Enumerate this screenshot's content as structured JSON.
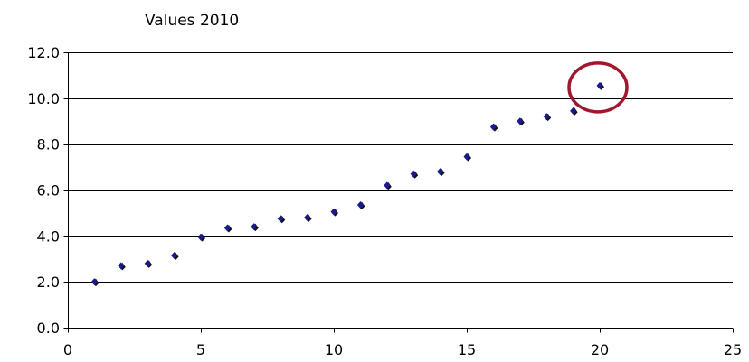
{
  "chart_data": {
    "type": "scatter",
    "title": "Values 2010",
    "xlabel": "",
    "ylabel": "",
    "xlim": [
      0,
      25
    ],
    "ylim": [
      0,
      12
    ],
    "x_ticks": [
      0,
      5,
      10,
      15,
      20,
      25
    ],
    "y_ticks": [
      0,
      2,
      4,
      6,
      8,
      10,
      12
    ],
    "x_tick_labels": [
      "0",
      "5",
      "10",
      "15",
      "20",
      "25"
    ],
    "y_tick_labels": [
      "0.0",
      "2.0",
      "4.0",
      "6.0",
      "8.0",
      "10.0",
      "12.0"
    ],
    "grid": "horizontal",
    "legend": "none",
    "series": [
      {
        "color": "#1a1a8c",
        "points": [
          {
            "x": 1,
            "y": 2.0
          },
          {
            "x": 2,
            "y": 2.7
          },
          {
            "x": 3,
            "y": 2.8
          },
          {
            "x": 4,
            "y": 3.15
          },
          {
            "x": 5,
            "y": 3.95
          },
          {
            "x": 6,
            "y": 4.35
          },
          {
            "x": 7,
            "y": 4.4
          },
          {
            "x": 8,
            "y": 4.75
          },
          {
            "x": 9,
            "y": 4.8
          },
          {
            "x": 10,
            "y": 5.05
          },
          {
            "x": 11,
            "y": 5.35
          },
          {
            "x": 12,
            "y": 6.2
          },
          {
            "x": 13,
            "y": 6.7
          },
          {
            "x": 14,
            "y": 6.8
          },
          {
            "x": 15,
            "y": 7.45
          },
          {
            "x": 16,
            "y": 8.75
          },
          {
            "x": 17,
            "y": 9.0
          },
          {
            "x": 18,
            "y": 9.2
          },
          {
            "x": 19,
            "y": 9.45
          },
          {
            "x": 20,
            "y": 10.55
          }
        ]
      }
    ],
    "annotations": [
      {
        "type": "circle",
        "target_x": 20,
        "target_y": 10.55,
        "color": "#a0182e"
      }
    ]
  }
}
